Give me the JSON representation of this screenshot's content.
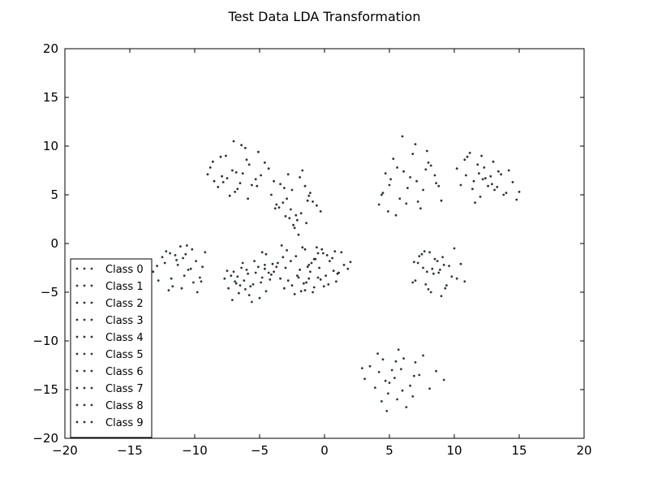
{
  "chart_data": {
    "type": "scatter",
    "title": "Test Data LDA Transformation",
    "xlabel": "",
    "ylabel": "",
    "xlim": [
      -20,
      20
    ],
    "ylim": [
      -20,
      20
    ],
    "xticks": [
      -20,
      -15,
      -10,
      -5,
      0,
      5,
      10,
      15,
      20
    ],
    "yticks": [
      -20,
      -15,
      -10,
      -5,
      0,
      5,
      10,
      15,
      20
    ],
    "xtick_labels": [
      "−20",
      "−15",
      "−10",
      "−5",
      "0",
      "5",
      "10",
      "15",
      "20"
    ],
    "ytick_labels": [
      "−20",
      "−15",
      "−10",
      "−5",
      "0",
      "5",
      "10",
      "15",
      "20"
    ],
    "grid": false,
    "legend_position": "lower-left",
    "series": [
      {
        "name": "Class 0",
        "color": "#2f3d2f",
        "x": [
          4.2,
          4.7,
          5.4,
          5.9,
          6.6,
          7.3,
          3.5,
          8.1,
          4.9,
          6.1,
          5.6,
          4.1,
          7.0,
          5.2,
          6.8,
          3.9,
          8.6,
          5.5,
          6.3,
          4.5,
          3.1,
          7.6,
          5.0,
          6.0,
          4.4,
          2.9,
          9.2,
          5.7,
          6.9,
          4.8
        ],
        "y": [
          -13.2,
          -14.1,
          -13.8,
          -12.9,
          -14.6,
          -13.5,
          -12.6,
          -14.9,
          -15.4,
          -11.8,
          -16.0,
          -11.3,
          -12.2,
          -13.0,
          -15.7,
          -14.8,
          -13.1,
          -12.1,
          -16.8,
          -11.9,
          -13.9,
          -11.5,
          -14.3,
          -15.1,
          -16.2,
          -12.8,
          -14.0,
          -10.9,
          -13.6,
          -17.2
        ]
      },
      {
        "name": "Class 1",
        "color": "#2a3a34",
        "x": [
          -11.5,
          -10.2,
          -9.4,
          -12.3,
          -10.8,
          -11.1,
          -9.9,
          -12.8,
          -10.5,
          -11.9,
          -13.2,
          -9.6,
          -10.9,
          -11.7,
          -12.5,
          -10.1,
          -9.2,
          -11.3,
          -12.0,
          -10.6,
          -13.6,
          -9.8,
          -11.4,
          -10.3,
          -12.2,
          -9.5,
          -11.0,
          -12.9,
          -10.7,
          -11.8
        ],
        "y": [
          -1.2,
          -0.6,
          -2.4,
          -2.0,
          -3.3,
          -0.3,
          -1.8,
          -3.8,
          -2.7,
          -1.0,
          -2.9,
          -3.5,
          -1.5,
          -4.4,
          -1.4,
          -4.0,
          -0.9,
          -2.2,
          -4.8,
          -0.2,
          -3.1,
          -5.0,
          -1.7,
          -2.6,
          -0.8,
          -3.9,
          -4.6,
          -2.3,
          -1.1,
          -3.6
        ]
      },
      {
        "name": "Class 2",
        "color": "#2e2e32",
        "x": [
          -7.1,
          -5.8,
          -6.5,
          -8.2,
          -4.9,
          -7.6,
          -6.0,
          -5.3,
          -8.8,
          -6.9,
          -7.9,
          -5.1,
          -6.3,
          -8.5,
          -4.6,
          -7.3,
          -6.1,
          -5.6,
          -9.0,
          -7.0,
          -6.7,
          -4.3,
          -8.0,
          -5.9,
          -7.5,
          -6.4,
          -5.2,
          -8.6,
          -6.8,
          -7.8
        ],
        "y": [
          7.5,
          8.1,
          6.2,
          5.8,
          7.0,
          9.0,
          8.6,
          6.6,
          7.8,
          5.3,
          6.9,
          9.4,
          7.2,
          6.4,
          8.3,
          4.9,
          9.8,
          6.0,
          7.1,
          10.5,
          5.6,
          7.7,
          8.9,
          4.6,
          6.7,
          10.1,
          5.9,
          8.4,
          7.3,
          6.3
        ]
      },
      {
        "name": "Class 3",
        "color": "#2c3330",
        "x": [
          -3.2,
          -2.5,
          -1.8,
          -3.9,
          -2.1,
          -1.2,
          -2.8,
          -3.5,
          -1.5,
          -2.3,
          -0.9,
          -3.0,
          -1.9,
          -2.6,
          -4.1,
          -1.4,
          -2.9,
          -0.6,
          -3.4,
          -2.0,
          -1.1,
          -2.7,
          -3.7,
          -1.7,
          -0.3,
          -2.4,
          -3.1,
          -1.3,
          -2.2,
          -3.8
        ],
        "y": [
          4.2,
          5.5,
          3.1,
          6.4,
          2.4,
          4.9,
          7.1,
          3.7,
          5.9,
          1.6,
          4.3,
          2.8,
          6.8,
          3.5,
          5.0,
          2.1,
          4.6,
          3.9,
          6.1,
          0.9,
          5.2,
          2.6,
          4.0,
          7.5,
          3.3,
          1.9,
          5.7,
          4.4,
          2.9,
          3.6
        ]
      },
      {
        "name": "Class 4",
        "color": "#303030",
        "x": [
          -1.0,
          -0.5,
          0.2,
          -1.6,
          0.7,
          -0.2,
          1.1,
          -0.8,
          0.4,
          -1.3,
          0.9,
          -0.1,
          -0.9,
          1.5,
          0.1,
          -0.6,
          1.8,
          -1.5,
          0.6,
          -0.3,
          1.3,
          -1.1,
          0.3,
          -0.7,
          1.0,
          -0.4,
          2.0,
          -1.2,
          0.8,
          -0.05
        ],
        "y": [
          -2.0,
          -3.5,
          -1.2,
          -4.1,
          -2.8,
          -0.6,
          -3.0,
          -4.5,
          -1.8,
          -2.4,
          -3.9,
          -1.0,
          -5.0,
          -2.2,
          -3.3,
          -0.4,
          -2.6,
          -4.8,
          -1.5,
          -3.7,
          -0.9,
          -2.9,
          -4.2,
          -1.6,
          -3.1,
          -2.5,
          -1.9,
          -3.6,
          -0.8,
          -4.4
        ]
      },
      {
        "name": "Class 5",
        "color": "#2e3a2e",
        "x": [
          7.2,
          8.4,
          9.1,
          7.8,
          8.9,
          10.2,
          7.5,
          8.2,
          9.6,
          7.0,
          8.7,
          9.3,
          7.9,
          10.5,
          8.1,
          9.8,
          6.8,
          8.5,
          9.0,
          7.6,
          10.0,
          8.8,
          7.3,
          9.4,
          8.3,
          10.8,
          7.7,
          9.2,
          8.0,
          6.9
        ],
        "y": [
          -2.0,
          -3.1,
          -1.4,
          -4.2,
          -2.7,
          -3.6,
          -1.1,
          -5.0,
          -2.3,
          -3.8,
          -1.8,
          -4.6,
          -2.9,
          -2.1,
          -0.9,
          -3.4,
          -4.0,
          -1.6,
          -5.4,
          -2.5,
          -0.5,
          -3.0,
          -1.3,
          -4.3,
          -2.6,
          -3.9,
          -0.8,
          -2.2,
          -4.7,
          -1.9
        ]
      },
      {
        "name": "Class 6",
        "color": "#2b3a37",
        "x": [
          -6.2,
          -5.5,
          -7.0,
          -4.8,
          -6.6,
          -5.1,
          -7.4,
          -5.9,
          -6.9,
          -4.5,
          -6.3,
          -5.7,
          -7.2,
          -5.0,
          -6.0,
          -4.2,
          -6.8,
          -5.4,
          -7.7,
          -5.8,
          -6.4,
          -4.9,
          -7.1,
          -5.3,
          -6.1,
          -4.6,
          -6.7,
          -5.6,
          -7.5,
          -6.5
        ],
        "y": [
          -3.8,
          -4.2,
          -2.9,
          -3.5,
          -5.1,
          -2.4,
          -4.6,
          -3.1,
          -3.9,
          -4.9,
          -2.0,
          -4.4,
          -3.3,
          -5.6,
          -2.7,
          -3.7,
          -4.1,
          -1.8,
          -3.6,
          -5.3,
          -2.5,
          -4.0,
          -5.8,
          -3.0,
          -4.7,
          -2.2,
          -3.4,
          -6.0,
          -2.8,
          -4.3
        ]
      },
      {
        "name": "Class 7",
        "color": "#322f2f",
        "x": [
          11.5,
          12.3,
          13.1,
          10.8,
          12.8,
          14.0,
          11.2,
          13.6,
          12.0,
          10.5,
          14.5,
          11.8,
          12.6,
          13.4,
          10.9,
          12.1,
          14.8,
          11.4,
          13.0,
          12.4,
          10.2,
          13.8,
          11.6,
          12.9,
          14.2,
          11.0,
          13.3,
          12.2,
          15.0,
          11.9
        ],
        "y": [
          6.4,
          7.8,
          5.5,
          8.6,
          6.9,
          5.2,
          9.3,
          7.1,
          4.8,
          6.0,
          6.3,
          8.1,
          5.9,
          7.4,
          7.0,
          9.0,
          4.5,
          5.6,
          8.4,
          6.7,
          7.7,
          5.0,
          4.2,
          6.1,
          7.5,
          8.9,
          5.8,
          6.6,
          5.3,
          7.2
        ]
      },
      {
        "name": "Class 8",
        "color": "#2d352d",
        "x": [
          4.5,
          5.6,
          7.1,
          6.3,
          8.0,
          5.0,
          6.8,
          7.6,
          4.9,
          8.5,
          5.8,
          7.0,
          6.1,
          4.2,
          8.8,
          5.3,
          7.4,
          6.6,
          9.0,
          4.7,
          7.9,
          5.5,
          6.4,
          8.2,
          5.1,
          7.2,
          6.0,
          8.6,
          4.4,
          7.8
        ],
        "y": [
          5.2,
          7.8,
          6.4,
          4.1,
          8.3,
          6.0,
          9.2,
          5.5,
          3.3,
          7.0,
          4.6,
          10.2,
          7.4,
          4.0,
          5.9,
          8.7,
          3.6,
          6.8,
          4.4,
          7.2,
          9.5,
          2.9,
          5.7,
          8.0,
          6.6,
          4.3,
          11.0,
          6.2,
          5.0,
          7.6
        ]
      },
      {
        "name": "Class 9",
        "color": "#3a2a2a",
        "x": [
          -3.0,
          -2.2,
          -4.1,
          -1.5,
          -3.6,
          -2.8,
          -4.5,
          -1.9,
          -3.3,
          -2.5,
          -0.8,
          -3.9,
          -2.0,
          -4.8,
          -1.2,
          -3.1,
          -2.6,
          -4.3,
          -1.7,
          -3.7,
          -2.3,
          -0.5,
          -3.4,
          -2.9,
          -4.0,
          -1.4,
          -3.2,
          -2.1,
          -4.6,
          -1.8
        ],
        "y": [
          -2.5,
          -1.3,
          -3.2,
          -0.6,
          -2.0,
          -3.8,
          -1.1,
          -2.7,
          -0.2,
          -4.3,
          -1.6,
          -2.9,
          -3.5,
          -0.9,
          -2.2,
          -4.6,
          -1.8,
          -3.0,
          -0.4,
          -2.4,
          -5.2,
          -1.0,
          -3.6,
          -0.7,
          -2.1,
          -4.0,
          -1.4,
          -3.3,
          -2.6,
          -4.9
        ]
      }
    ]
  }
}
